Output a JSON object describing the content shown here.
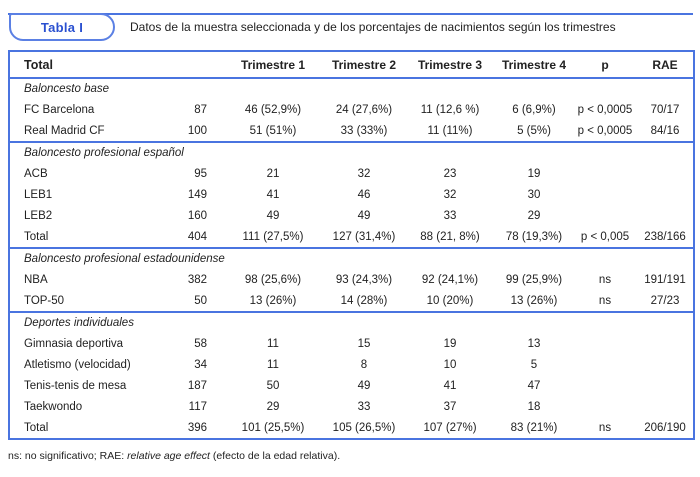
{
  "badge": {
    "label": "Tabla I"
  },
  "caption": "Datos de la muestra seleccionada y de los porcentajes de nacimientos según los trimestres",
  "table": {
    "headers": {
      "label": "Total",
      "n": "",
      "t1": "Trimestre 1",
      "t2": "Trimestre 2",
      "t3": "Trimestre 3",
      "t4": "Trimestre 4",
      "p": "p",
      "rae": "RAE"
    },
    "sections": [
      {
        "title": "Baloncesto base",
        "rows": [
          {
            "label": "FC Barcelona",
            "n": "87",
            "t1": "46 (52,9%)",
            "t2": "24 (27,6%)",
            "t3": "11 (12,6 %)",
            "t4": "6 (6,9%)",
            "p": "p < 0,0005",
            "rae": "70/17"
          },
          {
            "label": "Real Madrid CF",
            "n": "100",
            "t1": "51 (51%)",
            "t2": "33 (33%)",
            "t3": "11 (11%)",
            "t4": "5 (5%)",
            "p": "p < 0,0005",
            "rae": "84/16"
          }
        ]
      },
      {
        "title": "Baloncesto profesional español",
        "rows": [
          {
            "label": "ACB",
            "n": "95",
            "t1": "21",
            "t2": "32",
            "t3": "23",
            "t4": "19",
            "p": "",
            "rae": ""
          },
          {
            "label": "LEB1",
            "n": "149",
            "t1": "41",
            "t2": "46",
            "t3": "32",
            "t4": "30",
            "p": "",
            "rae": ""
          },
          {
            "label": "LEB2",
            "n": "160",
            "t1": "49",
            "t2": "49",
            "t3": "33",
            "t4": "29",
            "p": "",
            "rae": ""
          },
          {
            "label": "Total",
            "n": "404",
            "t1": "111 (27,5%)",
            "t2": "127 (31,4%)",
            "t3": "88 (21, 8%)",
            "t4": "78 (19,3%)",
            "p": "p < 0,005",
            "rae": "238/166"
          }
        ]
      },
      {
        "title": "Baloncesto profesional estadounidense",
        "rows": [
          {
            "label": "NBA",
            "n": "382",
            "t1": "98 (25,6%)",
            "t2": "93 (24,3%)",
            "t3": "92 (24,1%)",
            "t4": "99 (25,9%)",
            "p": "ns",
            "rae": "191/191"
          },
          {
            "label": "TOP-50",
            "n": "50",
            "t1": "13 (26%)",
            "t2": "14 (28%)",
            "t3": "10 (20%)",
            "t4": "13 (26%)",
            "p": "ns",
            "rae": "27/23"
          }
        ]
      },
      {
        "title": "Deportes individuales",
        "rows": [
          {
            "label": "Gimnasia deportiva",
            "n": "58",
            "t1": "11",
            "t2": "15",
            "t3": "19",
            "t4": "13",
            "p": "",
            "rae": ""
          },
          {
            "label": "Atletismo (velocidad)",
            "n": "34",
            "t1": "11",
            "t2": "8",
            "t3": "10",
            "t4": "5",
            "p": "",
            "rae": ""
          },
          {
            "label": "Tenis-tenis de mesa",
            "n": "187",
            "t1": "50",
            "t2": "49",
            "t3": "41",
            "t4": "47",
            "p": "",
            "rae": ""
          },
          {
            "label": "Taekwondo",
            "n": "117",
            "t1": "29",
            "t2": "33",
            "t3": "37",
            "t4": "18",
            "p": "",
            "rae": ""
          },
          {
            "label": "Total",
            "n": "396",
            "t1": "101 (25,5%)",
            "t2": "105 (26,5%)",
            "t3": "107 (27%)",
            "t4": "83 (21%)",
            "p": "ns",
            "rae": "206/190"
          }
        ]
      }
    ]
  },
  "footnote": {
    "prefix": "ns: no significativo; RAE: ",
    "italic": "relative age effect",
    "suffix": " (efecto de la edad relativa)."
  },
  "colors": {
    "accent_blue": "#4a74e0",
    "badge_text_blue": "#2a50d0",
    "text": "#222222"
  }
}
